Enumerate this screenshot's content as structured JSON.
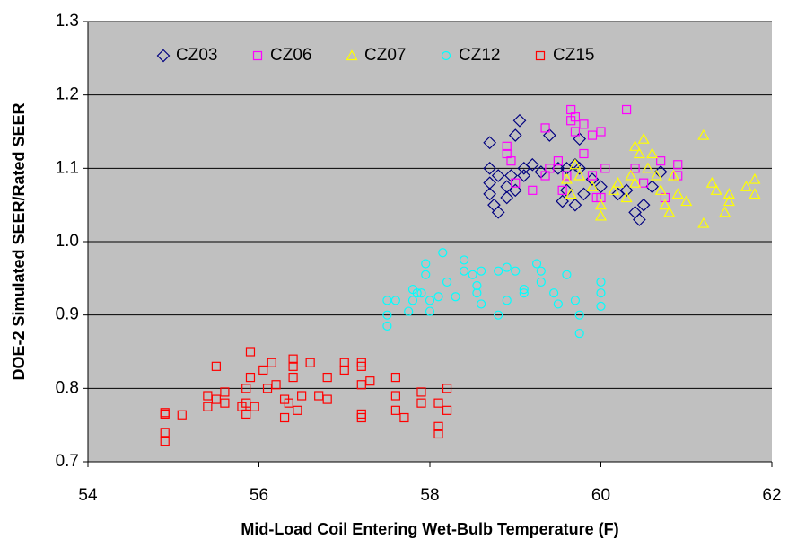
{
  "chart_data": {
    "type": "scatter",
    "xlabel": "Mid-Load Coil Entering Wet-Bulb Temperature (F)",
    "ylabel": "DOE-2 Simulated SEER/Rated SEER",
    "xlim": [
      54,
      62
    ],
    "xticks": [
      54,
      56,
      58,
      60,
      62
    ],
    "ylim": [
      0.7,
      1.3
    ],
    "yticks": [
      0.7,
      0.8,
      0.9,
      {
        "value": 1,
        "label": "1.0"
      },
      1.1,
      1.2,
      1.3
    ],
    "grid": true,
    "legend": "top",
    "background": "#c0c0c0",
    "series": [
      {
        "name": "CZ03",
        "color": "#000080",
        "marker": "diamond",
        "x": [
          58.7,
          58.7,
          58.7,
          58.7,
          58.75,
          58.8,
          58.8,
          58.9,
          58.9,
          59.0,
          59.0,
          59.05,
          59.1,
          59.2,
          59.3,
          59.5,
          59.55,
          59.6,
          59.7,
          59.7,
          59.75,
          59.75,
          59.8,
          59.9,
          60.0,
          60.2,
          60.3,
          60.4,
          60.45,
          60.5,
          60.6,
          60.7,
          59.1,
          58.95,
          59.4,
          59.6
        ],
        "values": [
          1.135,
          1.1,
          1.08,
          1.065,
          1.05,
          1.09,
          1.04,
          1.075,
          1.06,
          1.145,
          1.07,
          1.165,
          1.09,
          1.105,
          1.095,
          1.1,
          1.055,
          1.07,
          1.105,
          1.05,
          1.14,
          1.1,
          1.065,
          1.085,
          1.075,
          1.065,
          1.07,
          1.04,
          1.03,
          1.05,
          1.075,
          1.095,
          1.1,
          1.09,
          1.145,
          1.1
        ]
      },
      {
        "name": "CZ06",
        "color": "#ff00ff",
        "marker": "square",
        "x": [
          58.9,
          58.9,
          58.95,
          59.0,
          59.35,
          59.35,
          59.4,
          59.5,
          59.55,
          59.65,
          59.65,
          59.7,
          59.7,
          59.8,
          59.8,
          59.9,
          59.9,
          59.95,
          60.0,
          60.05,
          60.3,
          60.4,
          60.5,
          60.7,
          60.75,
          60.9,
          60.9,
          60.0,
          59.6,
          59.2
        ],
        "values": [
          1.13,
          1.12,
          1.11,
          1.08,
          1.155,
          1.09,
          1.1,
          1.11,
          1.07,
          1.18,
          1.165,
          1.17,
          1.15,
          1.16,
          1.12,
          1.145,
          1.09,
          1.06,
          1.15,
          1.1,
          1.18,
          1.1,
          1.08,
          1.11,
          1.06,
          1.105,
          1.09,
          1.06,
          1.09,
          1.07
        ]
      },
      {
        "name": "CZ07",
        "color": "#ffff00",
        "marker": "triangle",
        "x": [
          59.6,
          59.65,
          59.7,
          59.75,
          59.9,
          60.0,
          60.0,
          60.15,
          60.2,
          60.3,
          60.4,
          60.45,
          60.5,
          60.55,
          60.6,
          60.65,
          60.7,
          60.75,
          60.8,
          60.85,
          60.9,
          61.0,
          61.2,
          61.2,
          61.3,
          61.35,
          61.45,
          61.5,
          61.5,
          61.7,
          61.8,
          61.8,
          60.35,
          60.4
        ],
        "values": [
          1.085,
          1.065,
          1.105,
          1.09,
          1.075,
          1.05,
          1.035,
          1.07,
          1.08,
          1.06,
          1.13,
          1.12,
          1.14,
          1.1,
          1.12,
          1.09,
          1.07,
          1.05,
          1.04,
          1.09,
          1.065,
          1.055,
          1.145,
          1.025,
          1.08,
          1.07,
          1.04,
          1.065,
          1.055,
          1.075,
          1.085,
          1.065,
          1.09,
          1.08
        ]
      },
      {
        "name": "CZ12",
        "color": "#00ffff",
        "marker": "circle",
        "x": [
          57.5,
          57.5,
          57.5,
          57.6,
          57.75,
          57.8,
          57.8,
          57.85,
          57.9,
          57.95,
          57.95,
          58.0,
          58.0,
          58.1,
          58.15,
          58.2,
          58.3,
          58.4,
          58.4,
          58.5,
          58.55,
          58.55,
          58.6,
          58.6,
          58.8,
          58.8,
          58.9,
          58.9,
          59.0,
          59.1,
          59.1,
          59.25,
          59.3,
          59.3,
          59.45,
          59.5,
          59.6,
          59.7,
          59.75,
          59.75,
          60.0,
          60.0,
          60.0
        ],
        "values": [
          0.92,
          0.9,
          0.885,
          0.92,
          0.905,
          0.935,
          0.92,
          0.93,
          0.93,
          0.97,
          0.955,
          0.92,
          0.905,
          0.925,
          0.985,
          0.945,
          0.925,
          0.975,
          0.96,
          0.955,
          0.94,
          0.93,
          0.96,
          0.915,
          0.96,
          0.9,
          0.965,
          0.92,
          0.96,
          0.935,
          0.93,
          0.97,
          0.96,
          0.945,
          0.93,
          0.915,
          0.955,
          0.92,
          0.9,
          0.875,
          0.945,
          0.93,
          0.912
        ]
      },
      {
        "name": "CZ15",
        "color": "#ff0000",
        "marker": "square",
        "x": [
          54.9,
          54.9,
          54.9,
          54.9,
          55.1,
          55.4,
          55.4,
          55.5,
          55.5,
          55.6,
          55.6,
          55.8,
          55.85,
          55.85,
          55.85,
          55.9,
          55.9,
          55.95,
          56.05,
          56.1,
          56.15,
          56.2,
          56.3,
          56.3,
          56.35,
          56.4,
          56.4,
          56.4,
          56.45,
          56.5,
          56.6,
          56.7,
          56.8,
          56.8,
          57.0,
          57.0,
          57.2,
          57.2,
          57.2,
          57.2,
          57.2,
          57.3,
          57.6,
          57.6,
          57.6,
          57.7,
          57.9,
          57.9,
          58.1,
          58.1,
          58.1,
          58.2,
          58.2
        ],
        "values": [
          0.767,
          0.765,
          0.74,
          0.728,
          0.764,
          0.79,
          0.775,
          0.83,
          0.785,
          0.795,
          0.78,
          0.775,
          0.8,
          0.765,
          0.78,
          0.85,
          0.815,
          0.775,
          0.825,
          0.8,
          0.835,
          0.805,
          0.785,
          0.76,
          0.78,
          0.84,
          0.83,
          0.815,
          0.77,
          0.79,
          0.835,
          0.79,
          0.815,
          0.785,
          0.835,
          0.825,
          0.835,
          0.83,
          0.805,
          0.765,
          0.76,
          0.81,
          0.815,
          0.79,
          0.77,
          0.76,
          0.795,
          0.78,
          0.78,
          0.748,
          0.738,
          0.8,
          0.77
        ]
      }
    ]
  }
}
